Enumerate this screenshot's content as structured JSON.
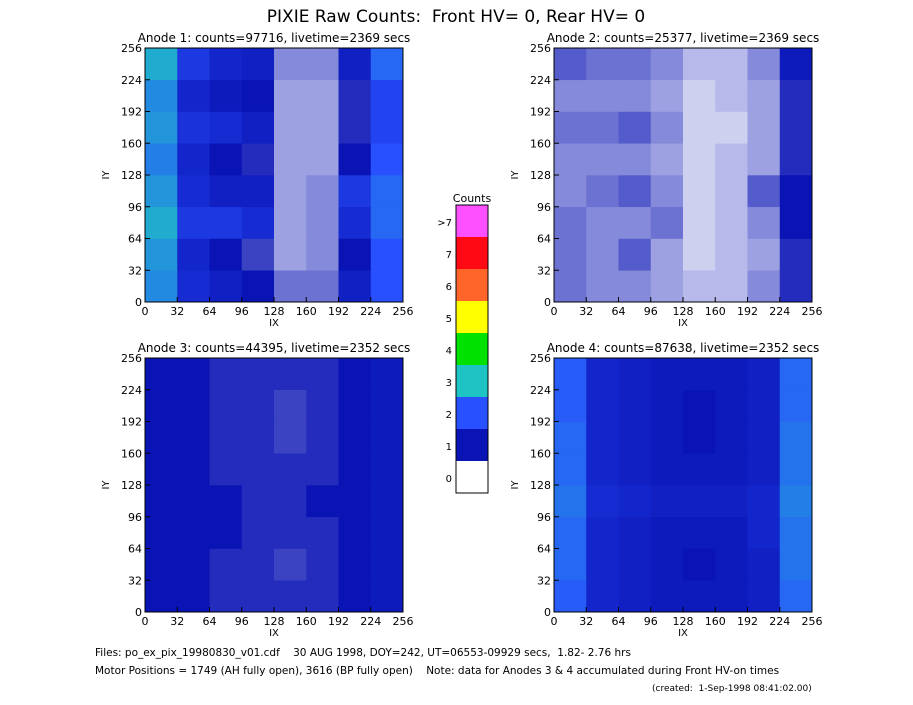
{
  "title": "PIXIE Raw Counts:  Front HV= 0, Rear HV= 0",
  "chart_data": [
    {
      "type": "heatmap",
      "title": "Anode 1: counts=97716, livetime=2369 secs",
      "xlabel": "IX",
      "ylabel": "IY",
      "xlim": [
        0,
        256
      ],
      "ylim": [
        0,
        256
      ],
      "xticks": [
        0,
        32,
        64,
        96,
        128,
        160,
        192,
        224,
        256
      ],
      "yticks": [
        0,
        32,
        64,
        96,
        128,
        160,
        192,
        224,
        256
      ],
      "values": [
        [
          2.5,
          1.4,
          1.2,
          1.0,
          0.6,
          0.6,
          1.2,
          2.0
        ],
        [
          2.6,
          1.3,
          1.0,
          0.8,
          0.4,
          0.5,
          1.0,
          2.0
        ],
        [
          2.8,
          1.6,
          1.6,
          1.4,
          0.4,
          0.5,
          1.4,
          2.2
        ],
        [
          2.6,
          1.4,
          1.2,
          1.2,
          0.4,
          0.5,
          1.6,
          2.2
        ],
        [
          2.4,
          1.3,
          1.0,
          0.9,
          0.4,
          0.4,
          1.0,
          2.0
        ],
        [
          2.6,
          1.5,
          1.4,
          1.2,
          0.4,
          0.4,
          0.9,
          1.8
        ],
        [
          2.5,
          1.3,
          1.1,
          1.0,
          0.4,
          0.4,
          0.9,
          1.8
        ],
        [
          2.8,
          1.6,
          1.3,
          1.2,
          0.5,
          0.5,
          1.2,
          2.2
        ]
      ]
    },
    {
      "type": "heatmap",
      "title": "Anode 2: counts=25377, livetime=2369 secs",
      "xlabel": "IX",
      "ylabel": "IY",
      "xlim": [
        0,
        256
      ],
      "ylim": [
        0,
        256
      ],
      "xticks": [
        0,
        32,
        64,
        96,
        128,
        160,
        192,
        224,
        256
      ],
      "yticks": [
        0,
        32,
        64,
        96,
        128,
        160,
        192,
        224,
        256
      ],
      "values": [
        [
          0.6,
          0.5,
          0.5,
          0.4,
          0.3,
          0.3,
          0.5,
          0.9
        ],
        [
          0.6,
          0.5,
          0.7,
          0.4,
          0.2,
          0.3,
          0.4,
          0.9
        ],
        [
          0.6,
          0.5,
          0.5,
          0.6,
          0.2,
          0.3,
          0.5,
          1.0
        ],
        [
          0.5,
          0.6,
          0.7,
          0.5,
          0.2,
          0.3,
          0.7,
          1.0
        ],
        [
          0.5,
          0.5,
          0.5,
          0.4,
          0.2,
          0.3,
          0.4,
          0.9
        ],
        [
          0.6,
          0.6,
          0.7,
          0.5,
          0.2,
          0.2,
          0.4,
          0.9
        ],
        [
          0.5,
          0.5,
          0.5,
          0.4,
          0.2,
          0.3,
          0.4,
          0.9
        ],
        [
          0.7,
          0.6,
          0.6,
          0.5,
          0.3,
          0.3,
          0.5,
          1.1
        ]
      ]
    },
    {
      "type": "heatmap",
      "title": "Anode 3: counts=44395, livetime=2352 secs",
      "xlabel": "IX",
      "ylabel": "IY",
      "xlim": [
        0,
        256
      ],
      "ylim": [
        0,
        256
      ],
      "xticks": [
        0,
        32,
        64,
        96,
        128,
        160,
        192,
        224,
        256
      ],
      "yticks": [
        0,
        32,
        64,
        96,
        128,
        160,
        192,
        224,
        256
      ],
      "values": [
        [
          1.0,
          1.0,
          0.9,
          0.9,
          0.9,
          0.9,
          1.0,
          1.1
        ],
        [
          1.0,
          1.0,
          0.9,
          0.9,
          0.8,
          0.9,
          1.0,
          1.1
        ],
        [
          1.0,
          1.0,
          1.0,
          0.9,
          0.9,
          0.9,
          1.0,
          1.1
        ],
        [
          1.0,
          1.0,
          1.0,
          0.9,
          0.9,
          1.0,
          1.0,
          1.1
        ],
        [
          1.0,
          1.0,
          0.9,
          0.9,
          0.9,
          0.9,
          1.0,
          1.1
        ],
        [
          1.0,
          1.0,
          0.9,
          0.9,
          0.8,
          0.9,
          1.0,
          1.1
        ],
        [
          1.0,
          1.0,
          0.9,
          0.9,
          0.8,
          0.9,
          1.0,
          1.1
        ],
        [
          1.0,
          1.0,
          0.9,
          0.9,
          0.9,
          0.9,
          1.0,
          1.1
        ]
      ]
    },
    {
      "type": "heatmap",
      "title": "Anode 4: counts=87638, livetime=2352 secs",
      "xlabel": "IX",
      "ylabel": "IY",
      "xlim": [
        0,
        256
      ],
      "ylim": [
        0,
        256
      ],
      "xticks": [
        0,
        32,
        64,
        96,
        128,
        160,
        192,
        224,
        256
      ],
      "yticks": [
        0,
        32,
        64,
        96,
        128,
        160,
        192,
        224,
        256
      ],
      "values": [
        [
          2.1,
          1.3,
          1.2,
          1.1,
          1.1,
          1.1,
          1.2,
          2.2
        ],
        [
          2.2,
          1.3,
          1.2,
          1.1,
          1.0,
          1.1,
          1.2,
          2.3
        ],
        [
          2.2,
          1.3,
          1.2,
          1.1,
          1.1,
          1.1,
          1.3,
          2.3
        ],
        [
          2.3,
          1.4,
          1.3,
          1.2,
          1.2,
          1.2,
          1.3,
          2.4
        ],
        [
          2.2,
          1.3,
          1.2,
          1.1,
          1.1,
          1.1,
          1.2,
          2.3
        ],
        [
          2.2,
          1.3,
          1.2,
          1.1,
          1.0,
          1.1,
          1.2,
          2.3
        ],
        [
          2.1,
          1.3,
          1.2,
          1.1,
          1.0,
          1.1,
          1.2,
          2.2
        ],
        [
          2.1,
          1.3,
          1.2,
          1.1,
          1.1,
          1.1,
          1.2,
          2.2
        ]
      ]
    }
  ],
  "colorbar": {
    "title": "Counts",
    "labels": [
      "0",
      "1",
      "2",
      "3",
      "4",
      "5",
      "6",
      "7",
      ">7"
    ],
    "colors": [
      "#ffffff",
      "#0a14b4",
      "#2850ff",
      "#1ec3c3",
      "#00e100",
      "#ffff00",
      "#ff6428",
      "#ff0a14",
      "#ff50ff"
    ]
  },
  "footer": [
    "Files: po_ex_pix_19980830_v01.cdf    30 AUG 1998, DOY=242, UT=06553-09929 secs,  1.82- 2.76 hrs",
    "Motor Positions = 1749 (AH fully open), 3616 (BP fully open)    Note: data for Anodes 3 & 4 accumulated during Front HV-on times",
    "(created:  1-Sep-1998 08:41:02.00)"
  ]
}
